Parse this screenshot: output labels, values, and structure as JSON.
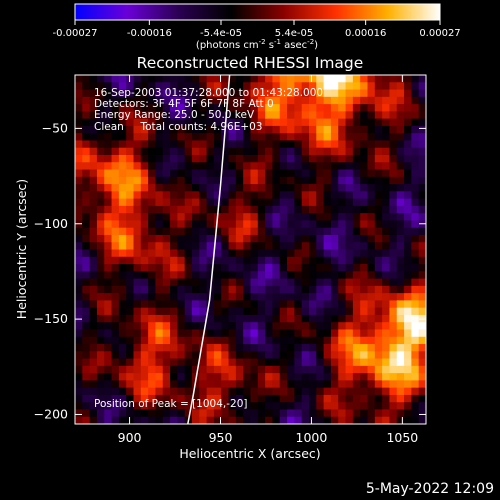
{
  "chart_data": {
    "type": "heatmap",
    "title": "Reconstructed RHESSI Image",
    "xlabel": "Heliocentric X (arcsec)",
    "ylabel": "Heliocentric Y (arcsec)",
    "xlim": [
      870,
      1063
    ],
    "ylim": [
      -205,
      -22
    ],
    "x_ticks": [
      900,
      950,
      1000,
      1050
    ],
    "y_ticks": [
      -50,
      -100,
      -150,
      -200
    ],
    "x_tick_labels": [
      "900",
      "950",
      "1000",
      "1050"
    ],
    "y_tick_labels": [
      "−50",
      "−100",
      "−150",
      "−200"
    ],
    "colorbar": {
      "position": "top",
      "range": [
        -0.00027,
        0.00027
      ],
      "tick_values": [
        -0.00027,
        -0.00016,
        -5.4e-05,
        5.4e-05,
        0.00016,
        0.00027
      ],
      "tick_labels": [
        "-0.00027",
        "-0.00016",
        "-5.4e-05",
        "5.4e-05",
        "0.00016",
        "0.00027"
      ],
      "units_text": "(photons cm",
      "units_exp1": "-2",
      "units_mid": " s",
      "units_exp2": "-1",
      "units_end": " asec",
      "units_exp3": "-2",
      "units_close": ")",
      "colors": [
        "#0000ff",
        "#6a00d8",
        "#2a0050",
        "#000000",
        "#8a0000",
        "#ff3000",
        "#ffb000",
        "#ffffff"
      ]
    },
    "info_lines": [
      "16-Sep-2003 01:37:28.000 to 01:43:28.000",
      "Detectors: 3F 4F 5F 6F 7F 8F  Att 0",
      "Energy Range: 25.0 - 50.0 keV",
      "Clean     Total counts: 4.96E+03"
    ],
    "peak_label": "Position of Peak = [1004,-20]",
    "peak_position": [
      1004,
      -20
    ],
    "limb_curve": [
      [
        955,
        -22
      ],
      [
        950,
        -80
      ],
      [
        944,
        -140
      ],
      [
        935,
        -190
      ],
      [
        932,
        -205
      ]
    ],
    "grid": false
  },
  "footer": {
    "timestamp": "5-May-2022 12:09"
  },
  "colors": {
    "background": "#000000",
    "foreground": "#ffffff"
  }
}
